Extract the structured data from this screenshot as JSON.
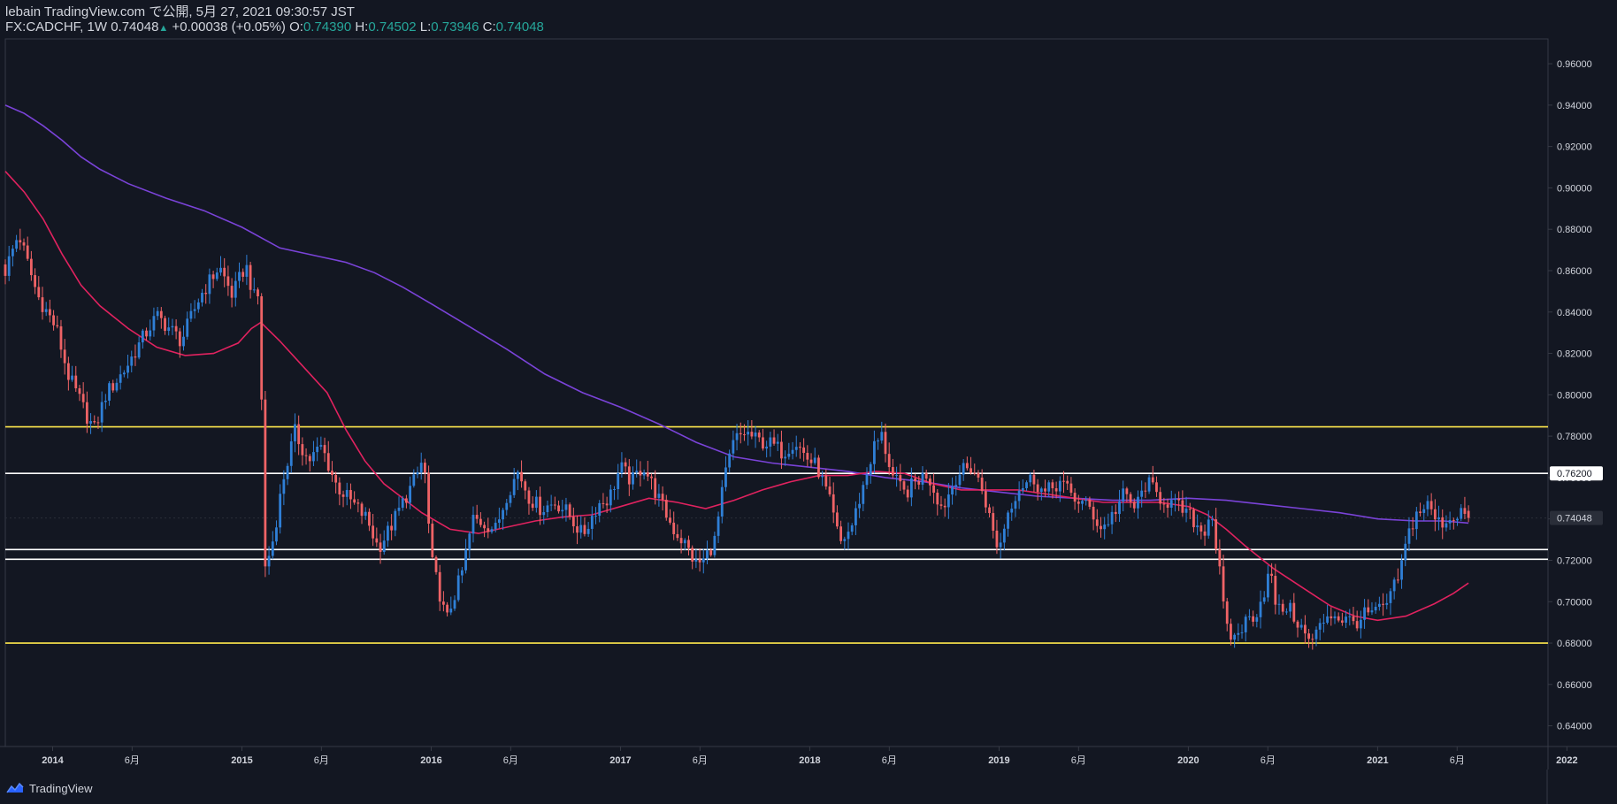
{
  "header": {
    "line1": "lebain TradingView.com で公開, 5月 27, 2021 09:30:57 JST",
    "symbol": "FX:CADCHF, 1W",
    "last": "0.74048",
    "change": "+0.00038 (+0.05%)",
    "o_label": "O:",
    "o_value": "0.74390",
    "h_label": "H:",
    "h_value": "0.74502",
    "l_label": "L:",
    "l_value": "0.73946",
    "c_label": "C:",
    "c_value": "0.74048"
  },
  "colors": {
    "background": "#131722",
    "up": "#2f7fd6",
    "down": "#ef6366",
    "ma_long": "#7a43d8",
    "ma_short": "#e0225f",
    "support_resistance_yellow": "#ffe84d",
    "support_resistance_white": "#ffffff",
    "text": "#d1d4dc",
    "header_values": "#26a69a"
  },
  "footer": {
    "brand": "TradingView",
    "logo_icon": "tradingview-logo-icon"
  },
  "chart_data": {
    "type": "candlestick",
    "symbol": "FX:CADCHF",
    "interval": "1W",
    "y_axis": {
      "ticks": [
        "0.96000",
        "0.94000",
        "0.92000",
        "0.90000",
        "0.88000",
        "0.86000",
        "0.84000",
        "0.82000",
        "0.80000",
        "0.78000",
        "0.76000",
        "0.74000",
        "0.72000",
        "0.70000",
        "0.68000",
        "0.66000",
        "0.64000"
      ],
      "range": [
        0.63,
        0.972
      ],
      "price_labels": [
        {
          "value": 0.762,
          "text": "0.76200",
          "style": "white"
        },
        {
          "value": 0.74048,
          "text": "0.74048",
          "style": "dark"
        }
      ]
    },
    "x_axis": {
      "range": [
        2013.75,
        2021.9
      ],
      "ticks": [
        {
          "t": 2014.0,
          "label": "2014"
        },
        {
          "t": 2014.42,
          "label": "6月"
        },
        {
          "t": 2015.0,
          "label": "2015"
        },
        {
          "t": 2015.42,
          "label": "6月"
        },
        {
          "t": 2016.0,
          "label": "2016"
        },
        {
          "t": 2016.42,
          "label": "6月"
        },
        {
          "t": 2017.0,
          "label": "2017"
        },
        {
          "t": 2017.42,
          "label": "6月"
        },
        {
          "t": 2018.0,
          "label": "2018"
        },
        {
          "t": 2018.42,
          "label": "6月"
        },
        {
          "t": 2019.0,
          "label": "2019"
        },
        {
          "t": 2019.42,
          "label": "6月"
        },
        {
          "t": 2020.0,
          "label": "2020"
        },
        {
          "t": 2020.42,
          "label": "6月"
        },
        {
          "t": 2021.0,
          "label": "2021"
        },
        {
          "t": 2021.42,
          "label": "6月"
        },
        {
          "t": 2022.0,
          "label": "2022"
        }
      ]
    },
    "horizontal_lines": [
      {
        "value": 0.7845,
        "color": "#ffe84d"
      },
      {
        "value": 0.762,
        "color": "#ffffff"
      },
      {
        "value": 0.7252,
        "color": "#ffffff"
      },
      {
        "value": 0.7205,
        "color": "#ffffff"
      },
      {
        "value": 0.68,
        "color": "#ffe84d"
      }
    ],
    "close_path": [
      [
        2013.75,
        0.86
      ],
      [
        2013.82,
        0.878
      ],
      [
        2013.92,
        0.848
      ],
      [
        2014.02,
        0.832
      ],
      [
        2014.08,
        0.81
      ],
      [
        2014.18,
        0.79
      ],
      [
        2014.22,
        0.783
      ],
      [
        2014.28,
        0.8
      ],
      [
        2014.38,
        0.812
      ],
      [
        2014.48,
        0.828
      ],
      [
        2014.55,
        0.838
      ],
      [
        2014.62,
        0.832
      ],
      [
        2014.68,
        0.826
      ],
      [
        2014.78,
        0.848
      ],
      [
        2014.88,
        0.862
      ],
      [
        2014.95,
        0.848
      ],
      [
        2015.02,
        0.863
      ],
      [
        2015.07,
        0.845
      ],
      [
        2015.1,
        0.85
      ],
      [
        2015.11,
        0.712
      ],
      [
        2015.16,
        0.728
      ],
      [
        2015.22,
        0.76
      ],
      [
        2015.28,
        0.782
      ],
      [
        2015.35,
        0.768
      ],
      [
        2015.42,
        0.775
      ],
      [
        2015.5,
        0.756
      ],
      [
        2015.58,
        0.748
      ],
      [
        2015.66,
        0.74
      ],
      [
        2015.72,
        0.726
      ],
      [
        2015.78,
        0.735
      ],
      [
        2015.85,
        0.748
      ],
      [
        2015.92,
        0.76
      ],
      [
        2015.96,
        0.77
      ],
      [
        2016.0,
        0.72
      ],
      [
        2016.04,
        0.706
      ],
      [
        2016.08,
        0.69
      ],
      [
        2016.11,
        0.7
      ],
      [
        2016.16,
        0.713
      ],
      [
        2016.22,
        0.74
      ],
      [
        2016.28,
        0.738
      ],
      [
        2016.34,
        0.735
      ],
      [
        2016.4,
        0.752
      ],
      [
        2016.46,
        0.763
      ],
      [
        2016.52,
        0.75
      ],
      [
        2016.58,
        0.745
      ],
      [
        2016.66,
        0.748
      ],
      [
        2016.72,
        0.743
      ],
      [
        2016.8,
        0.732
      ],
      [
        2016.88,
        0.747
      ],
      [
        2016.94,
        0.75
      ],
      [
        2017.0,
        0.765
      ],
      [
        2017.06,
        0.758
      ],
      [
        2017.12,
        0.766
      ],
      [
        2017.2,
        0.75
      ],
      [
        2017.28,
        0.735
      ],
      [
        2017.34,
        0.728
      ],
      [
        2017.4,
        0.718
      ],
      [
        2017.44,
        0.72
      ],
      [
        2017.5,
        0.73
      ],
      [
        2017.55,
        0.76
      ],
      [
        2017.6,
        0.778
      ],
      [
        2017.66,
        0.782
      ],
      [
        2017.72,
        0.778
      ],
      [
        2017.8,
        0.776
      ],
      [
        2017.86,
        0.772
      ],
      [
        2017.92,
        0.778
      ],
      [
        2017.98,
        0.77
      ],
      [
        2018.04,
        0.765
      ],
      [
        2018.1,
        0.75
      ],
      [
        2018.16,
        0.728
      ],
      [
        2018.22,
        0.736
      ],
      [
        2018.28,
        0.755
      ],
      [
        2018.34,
        0.775
      ],
      [
        2018.38,
        0.78
      ],
      [
        2018.44,
        0.76
      ],
      [
        2018.5,
        0.752
      ],
      [
        2018.56,
        0.758
      ],
      [
        2018.62,
        0.762
      ],
      [
        2018.7,
        0.745
      ],
      [
        2018.78,
        0.762
      ],
      [
        2018.86,
        0.765
      ],
      [
        2018.92,
        0.752
      ],
      [
        2018.97,
        0.733
      ],
      [
        2019.0,
        0.725
      ],
      [
        2019.04,
        0.742
      ],
      [
        2019.1,
        0.755
      ],
      [
        2019.18,
        0.76
      ],
      [
        2019.24,
        0.752
      ],
      [
        2019.32,
        0.758
      ],
      [
        2019.4,
        0.75
      ],
      [
        2019.48,
        0.745
      ],
      [
        2019.54,
        0.735
      ],
      [
        2019.6,
        0.742
      ],
      [
        2019.66,
        0.752
      ],
      [
        2019.72,
        0.745
      ],
      [
        2019.78,
        0.758
      ],
      [
        2019.84,
        0.751
      ],
      [
        2019.9,
        0.748
      ],
      [
        2019.96,
        0.745
      ],
      [
        2020.02,
        0.74
      ],
      [
        2020.08,
        0.733
      ],
      [
        2020.12,
        0.745
      ],
      [
        2020.16,
        0.718
      ],
      [
        2020.2,
        0.686
      ],
      [
        2020.24,
        0.682
      ],
      [
        2020.3,
        0.69
      ],
      [
        2020.36,
        0.695
      ],
      [
        2020.4,
        0.705
      ],
      [
        2020.43,
        0.715
      ],
      [
        2020.47,
        0.695
      ],
      [
        2020.52,
        0.698
      ],
      [
        2020.58,
        0.69
      ],
      [
        2020.64,
        0.68
      ],
      [
        2020.68,
        0.685
      ],
      [
        2020.74,
        0.695
      ],
      [
        2020.8,
        0.692
      ],
      [
        2020.88,
        0.69
      ],
      [
        2020.94,
        0.694
      ],
      [
        2021.0,
        0.695
      ],
      [
        2021.06,
        0.7
      ],
      [
        2021.12,
        0.715
      ],
      [
        2021.16,
        0.732
      ],
      [
        2021.2,
        0.742
      ],
      [
        2021.26,
        0.747
      ],
      [
        2021.32,
        0.738
      ],
      [
        2021.38,
        0.74
      ],
      [
        2021.44,
        0.744
      ],
      [
        2021.48,
        0.7405
      ]
    ],
    "series": [
      {
        "name": "MA (long)",
        "color": "#7a43d8",
        "points": [
          [
            2013.75,
            0.94
          ],
          [
            2013.85,
            0.936
          ],
          [
            2013.95,
            0.93
          ],
          [
            2014.05,
            0.923
          ],
          [
            2014.15,
            0.915
          ],
          [
            2014.25,
            0.909
          ],
          [
            2014.4,
            0.902
          ],
          [
            2014.6,
            0.895
          ],
          [
            2014.8,
            0.889
          ],
          [
            2015.0,
            0.881
          ],
          [
            2015.2,
            0.871
          ],
          [
            2015.4,
            0.867
          ],
          [
            2015.55,
            0.864
          ],
          [
            2015.7,
            0.859
          ],
          [
            2015.85,
            0.852
          ],
          [
            2016.0,
            0.844
          ],
          [
            2016.2,
            0.833
          ],
          [
            2016.4,
            0.822
          ],
          [
            2016.6,
            0.81
          ],
          [
            2016.8,
            0.801
          ],
          [
            2017.0,
            0.794
          ],
          [
            2017.2,
            0.786
          ],
          [
            2017.4,
            0.777
          ],
          [
            2017.6,
            0.77
          ],
          [
            2017.8,
            0.767
          ],
          [
            2018.0,
            0.765
          ],
          [
            2018.2,
            0.763
          ],
          [
            2018.4,
            0.76
          ],
          [
            2018.6,
            0.758
          ],
          [
            2018.8,
            0.755
          ],
          [
            2019.0,
            0.753
          ],
          [
            2019.2,
            0.751
          ],
          [
            2019.4,
            0.75
          ],
          [
            2019.6,
            0.749
          ],
          [
            2019.8,
            0.749
          ],
          [
            2020.0,
            0.75
          ],
          [
            2020.2,
            0.749
          ],
          [
            2020.4,
            0.747
          ],
          [
            2020.6,
            0.745
          ],
          [
            2020.8,
            0.743
          ],
          [
            2021.0,
            0.74
          ],
          [
            2021.2,
            0.739
          ],
          [
            2021.35,
            0.739
          ],
          [
            2021.48,
            0.738
          ]
        ]
      },
      {
        "name": "MA (short)",
        "color": "#e0225f",
        "points": [
          [
            2013.75,
            0.908
          ],
          [
            2013.85,
            0.898
          ],
          [
            2013.95,
            0.885
          ],
          [
            2014.05,
            0.868
          ],
          [
            2014.15,
            0.853
          ],
          [
            2014.25,
            0.843
          ],
          [
            2014.4,
            0.832
          ],
          [
            2014.55,
            0.823
          ],
          [
            2014.7,
            0.819
          ],
          [
            2014.85,
            0.82
          ],
          [
            2014.98,
            0.825
          ],
          [
            2015.05,
            0.832
          ],
          [
            2015.1,
            0.835
          ],
          [
            2015.2,
            0.826
          ],
          [
            2015.3,
            0.816
          ],
          [
            2015.45,
            0.801
          ],
          [
            2015.55,
            0.783
          ],
          [
            2015.65,
            0.768
          ],
          [
            2015.75,
            0.757
          ],
          [
            2015.85,
            0.75
          ],
          [
            2015.95,
            0.743
          ],
          [
            2016.1,
            0.735
          ],
          [
            2016.25,
            0.733
          ],
          [
            2016.4,
            0.736
          ],
          [
            2016.55,
            0.739
          ],
          [
            2016.7,
            0.741
          ],
          [
            2016.85,
            0.742
          ],
          [
            2017.0,
            0.746
          ],
          [
            2017.15,
            0.75
          ],
          [
            2017.3,
            0.748
          ],
          [
            2017.45,
            0.745
          ],
          [
            2017.6,
            0.749
          ],
          [
            2017.75,
            0.754
          ],
          [
            2017.9,
            0.758
          ],
          [
            2018.05,
            0.761
          ],
          [
            2018.2,
            0.761
          ],
          [
            2018.35,
            0.763
          ],
          [
            2018.5,
            0.762
          ],
          [
            2018.65,
            0.757
          ],
          [
            2018.8,
            0.754
          ],
          [
            2018.95,
            0.754
          ],
          [
            2019.1,
            0.754
          ],
          [
            2019.25,
            0.752
          ],
          [
            2019.4,
            0.75
          ],
          [
            2019.55,
            0.748
          ],
          [
            2019.7,
            0.748
          ],
          [
            2019.85,
            0.748
          ],
          [
            2020.0,
            0.746
          ],
          [
            2020.1,
            0.742
          ],
          [
            2020.2,
            0.735
          ],
          [
            2020.3,
            0.727
          ],
          [
            2020.45,
            0.716
          ],
          [
            2020.6,
            0.707
          ],
          [
            2020.75,
            0.698
          ],
          [
            2020.88,
            0.693
          ],
          [
            2021.0,
            0.691
          ],
          [
            2021.15,
            0.693
          ],
          [
            2021.3,
            0.699
          ],
          [
            2021.4,
            0.704
          ],
          [
            2021.48,
            0.709
          ]
        ]
      }
    ]
  }
}
